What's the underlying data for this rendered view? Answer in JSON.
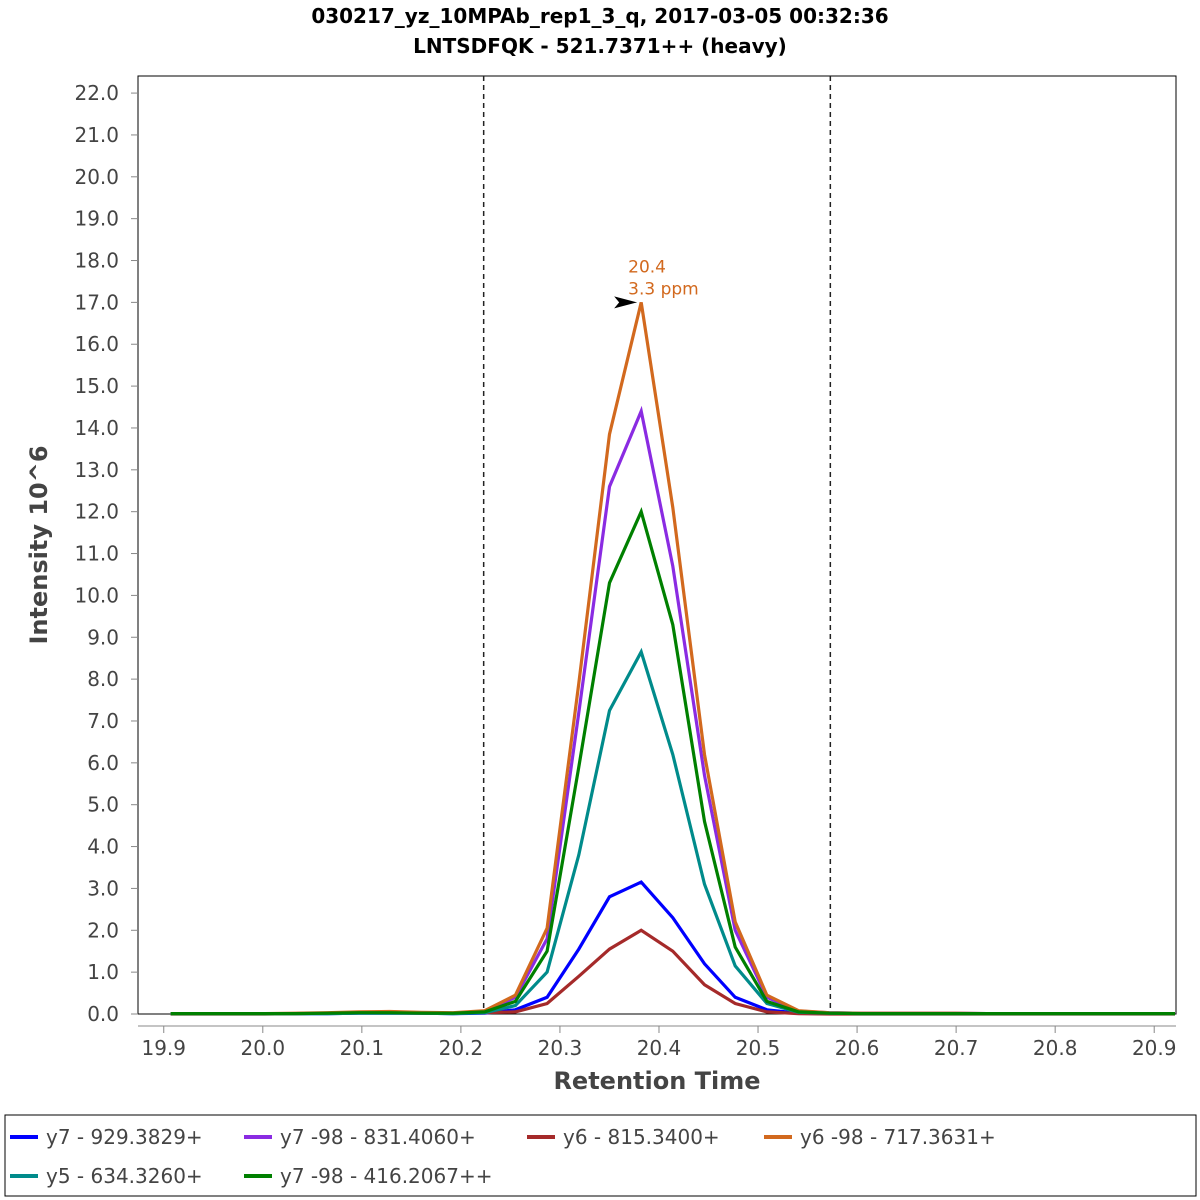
{
  "chart_data": {
    "type": "line",
    "title": "030217_yz_10MPAb_rep1_3_q, 2017-03-05 00:32:36",
    "subtitle": "LNTSDFQK - 521.7371++ (heavy)",
    "xlabel": "Retention Time",
    "ylabel": "Intensity 10^6",
    "xlim": [
      19.874,
      20.922
    ],
    "ylim": [
      0,
      22.5
    ],
    "xticks": [
      "19.9",
      "20.0",
      "20.1",
      "20.2",
      "20.3",
      "20.4",
      "20.5",
      "20.6",
      "20.7",
      "20.8",
      "20.9"
    ],
    "yticks": [
      "0.0",
      "1.0",
      "2.0",
      "3.0",
      "4.0",
      "5.0",
      "6.0",
      "7.0",
      "8.0",
      "9.0",
      "10.0",
      "11.0",
      "12.0",
      "13.0",
      "14.0",
      "15.0",
      "16.0",
      "17.0",
      "18.0",
      "19.0",
      "20.0",
      "21.0",
      "22.0"
    ],
    "grid": false,
    "boundaries": [
      20.223,
      20.573
    ],
    "annotation": {
      "x": 20.382,
      "y": 17.0,
      "lines": [
        "20.4",
        "3.3 ppm"
      ],
      "color": "#d2691e"
    },
    "legend_position": "bottom",
    "x": [
      19.907,
      19.938,
      19.97,
      20.002,
      20.033,
      20.065,
      20.097,
      20.128,
      20.16,
      20.192,
      20.224,
      20.255,
      20.287,
      20.319,
      20.35,
      20.382,
      20.414,
      20.446,
      20.477,
      20.509,
      20.541,
      20.572,
      20.604,
      20.636,
      20.668,
      20.699,
      20.731,
      20.763,
      20.794,
      20.826,
      20.858,
      20.89,
      20.921
    ],
    "series": [
      {
        "name": "y7 - 929.3829+",
        "color": "#0000ff",
        "values": [
          0.01,
          0.01,
          0.01,
          0.01,
          0.01,
          0.01,
          0.02,
          0.02,
          0.02,
          0.01,
          0.02,
          0.1,
          0.4,
          1.55,
          2.8,
          3.15,
          2.3,
          1.2,
          0.4,
          0.1,
          0.02,
          0.01,
          0.01,
          0.01,
          0.01,
          0.01,
          0.01,
          0.01,
          0.01,
          0.01,
          0.01,
          0.01,
          0.01
        ]
      },
      {
        "name": "y7 -98 - 831.4060+",
        "color": "#8a2be2",
        "values": [
          0.01,
          0.01,
          0.01,
          0.01,
          0.01,
          0.02,
          0.03,
          0.03,
          0.02,
          0.02,
          0.06,
          0.4,
          1.8,
          7.2,
          12.6,
          14.4,
          10.7,
          5.7,
          2.0,
          0.4,
          0.07,
          0.03,
          0.02,
          0.02,
          0.02,
          0.02,
          0.01,
          0.01,
          0.01,
          0.01,
          0.01,
          0.01,
          0.01
        ]
      },
      {
        "name": "y6 - 815.3400+",
        "color": "#a52a2a",
        "values": [
          0.0,
          0.0,
          0.0,
          0.0,
          0.01,
          0.02,
          0.04,
          0.05,
          0.03,
          0.02,
          0.03,
          0.05,
          0.25,
          0.9,
          1.55,
          2.0,
          1.5,
          0.7,
          0.25,
          0.05,
          0.01,
          0.0,
          0.0,
          0.0,
          0.0,
          0.0,
          0.0,
          0.0,
          0.0,
          0.0,
          0.0,
          0.0,
          0.0
        ]
      },
      {
        "name": "y6 -98 - 717.3631+",
        "color": "#d2691e",
        "values": [
          0.01,
          0.01,
          0.01,
          0.01,
          0.02,
          0.03,
          0.05,
          0.06,
          0.04,
          0.03,
          0.08,
          0.45,
          2.05,
          7.9,
          13.85,
          17.0,
          12.1,
          6.2,
          2.2,
          0.45,
          0.08,
          0.03,
          0.02,
          0.02,
          0.02,
          0.02,
          0.01,
          0.01,
          0.01,
          0.01,
          0.01,
          0.01,
          0.01
        ]
      },
      {
        "name": "y5 - 634.3260+",
        "color": "#008b8b",
        "values": [
          0.01,
          0.01,
          0.01,
          0.01,
          0.01,
          0.01,
          0.02,
          0.02,
          0.02,
          0.01,
          0.03,
          0.2,
          1.0,
          3.8,
          7.25,
          8.65,
          6.2,
          3.1,
          1.15,
          0.25,
          0.04,
          0.02,
          0.01,
          0.01,
          0.01,
          0.01,
          0.01,
          0.01,
          0.01,
          0.01,
          0.01,
          0.01,
          0.01
        ]
      },
      {
        "name": "y7 -98 - 416.2067++",
        "color": "#008000",
        "values": [
          0.01,
          0.01,
          0.01,
          0.01,
          0.01,
          0.02,
          0.03,
          0.03,
          0.02,
          0.02,
          0.05,
          0.3,
          1.5,
          5.9,
          10.3,
          12.0,
          9.3,
          4.6,
          1.6,
          0.3,
          0.05,
          0.02,
          0.01,
          0.01,
          0.01,
          0.01,
          0.01,
          0.01,
          0.01,
          0.01,
          0.01,
          0.01,
          0.01
        ]
      }
    ]
  }
}
